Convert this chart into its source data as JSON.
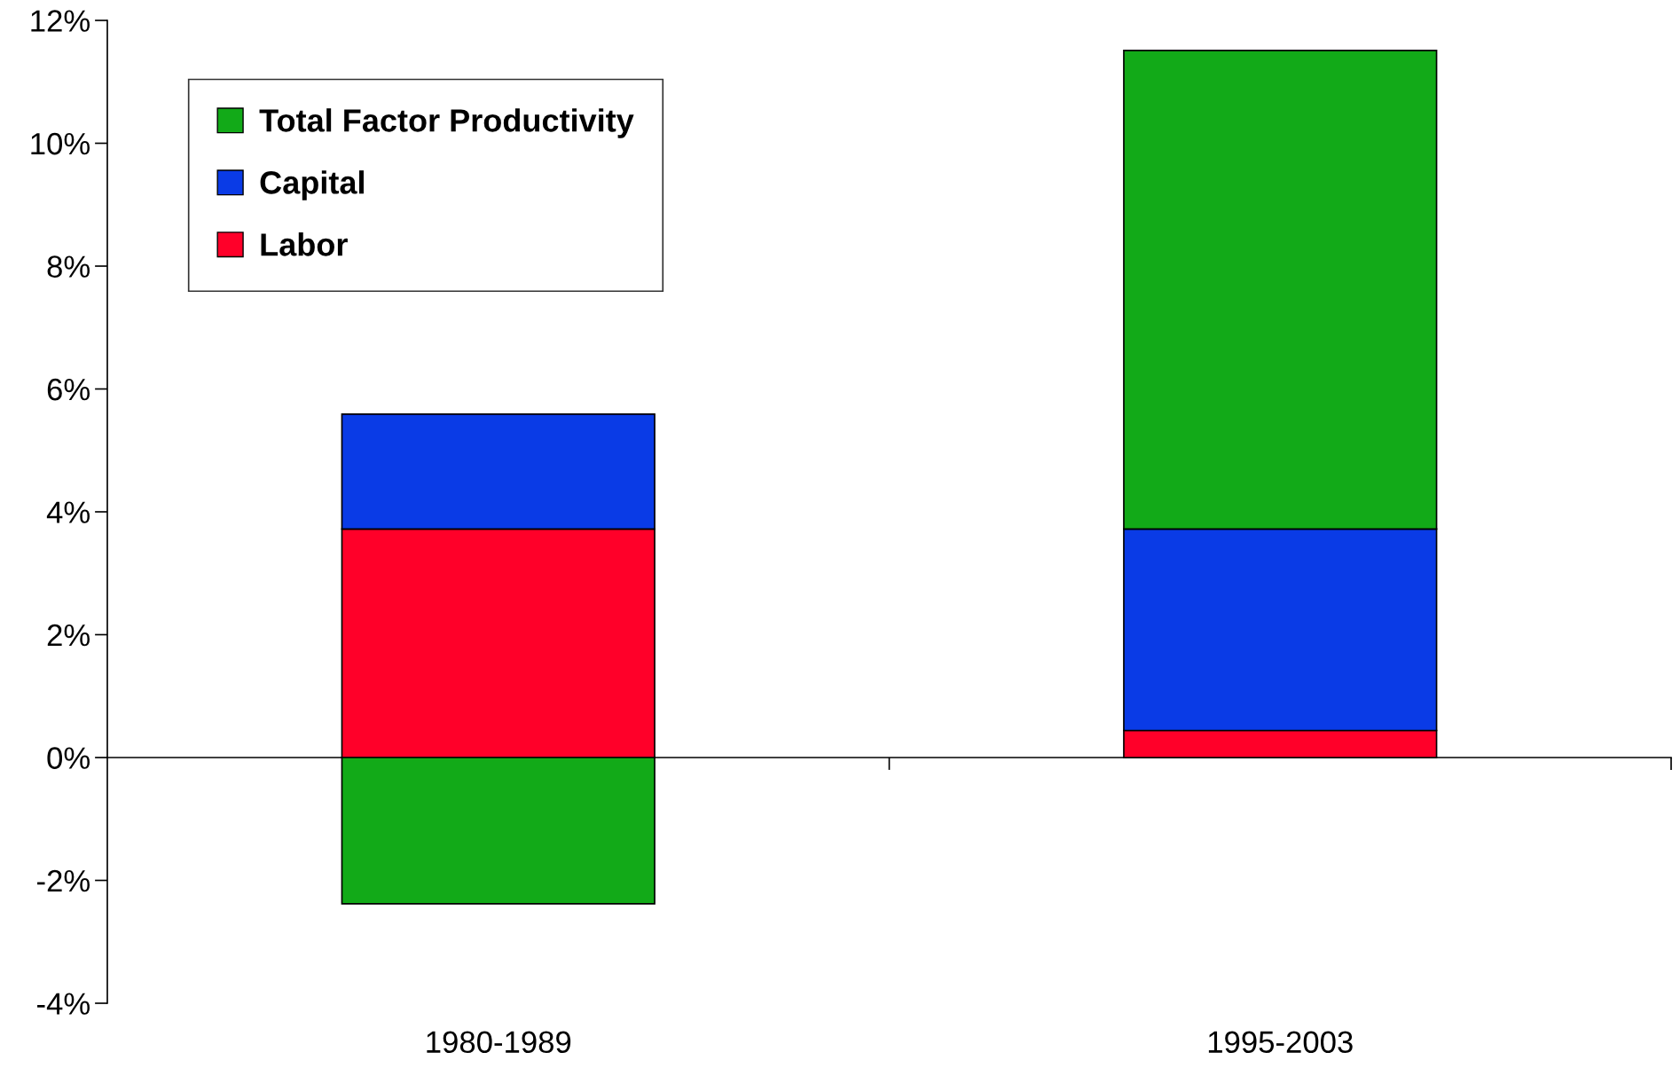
{
  "chart_data": {
    "type": "bar",
    "stacked": true,
    "categories": [
      "1980-1989",
      "1995-2003"
    ],
    "series": [
      {
        "name": "Labor",
        "color": "#ff0029",
        "values": [
          3.72,
          0.44
        ]
      },
      {
        "name": "Capital",
        "color": "#0a3be6",
        "values": [
          1.87,
          3.28
        ]
      },
      {
        "name": "Total Factor Productivity",
        "color": "#12aa18",
        "values": [
          -2.38,
          7.79
        ]
      }
    ],
    "ylim": [
      -4,
      12
    ],
    "yticks": [
      {
        "value": -4,
        "label": "-4%"
      },
      {
        "value": -2,
        "label": "-2%"
      },
      {
        "value": 0,
        "label": "0%"
      },
      {
        "value": 2,
        "label": "2%"
      },
      {
        "value": 4,
        "label": "4%"
      },
      {
        "value": 6,
        "label": "6%"
      },
      {
        "value": 8,
        "label": "8%"
      },
      {
        "value": 10,
        "label": "10%"
      },
      {
        "value": 12,
        "label": "12%"
      }
    ],
    "legend": "top left"
  }
}
